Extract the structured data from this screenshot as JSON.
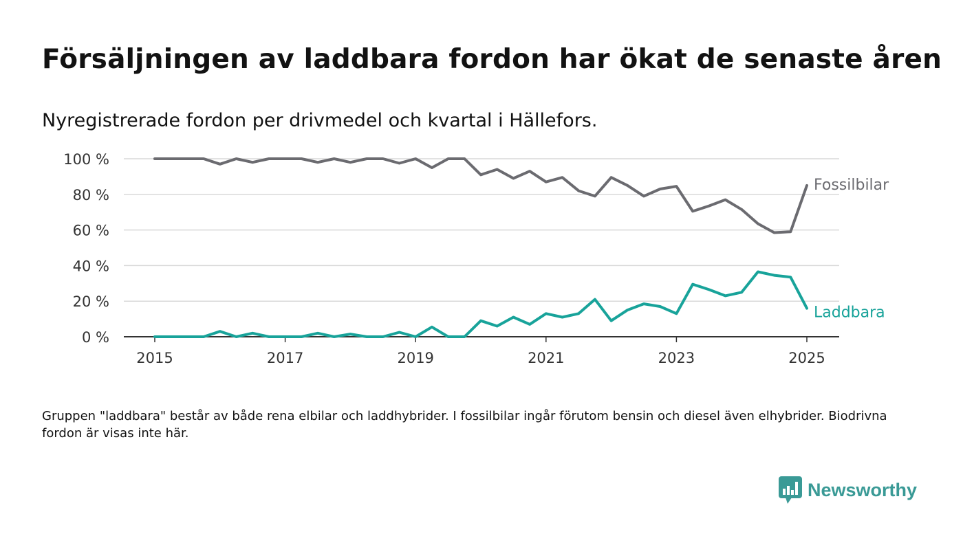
{
  "header": {
    "title": "Försäljningen av laddbara fordon har ökat de senaste åren",
    "subtitle": "Nyregistrerade fordon per drivmedel och kvartal i Hällefors."
  },
  "chart_data": {
    "type": "line",
    "x_start": "2015 Q1",
    "x_ticks": [
      "2015",
      "2017",
      "2019",
      "2021",
      "2023",
      "2025"
    ],
    "y_ticks": [
      "0 %",
      "20 %",
      "40 %",
      "60 %",
      "80 %",
      "100 %"
    ],
    "ylim": [
      0,
      100
    ],
    "grid": true,
    "legend": "direct labels at line ends (right)",
    "series": [
      {
        "name": "Fossilbilar",
        "color": "#6b6b70",
        "values": [
          100,
          100,
          100,
          100,
          97,
          100,
          98,
          100,
          100,
          100,
          98,
          100,
          98,
          100,
          100,
          97.5,
          100,
          95,
          100,
          100,
          91,
          94,
          89,
          93,
          87,
          89.5,
          82,
          79,
          89.5,
          85,
          79,
          83,
          84.5,
          70.5,
          73.5,
          77,
          71.5,
          63.5,
          58.5,
          59,
          85
        ]
      },
      {
        "name": "Laddbara",
        "color": "#18a39a",
        "values": [
          0,
          0,
          0,
          0,
          3,
          0,
          2,
          0,
          0,
          0,
          2,
          0,
          1.5,
          0,
          0,
          2.5,
          0,
          5.5,
          0,
          0,
          9,
          6,
          11,
          7,
          13,
          11,
          13,
          21,
          9,
          15,
          18.5,
          17,
          13,
          29.5,
          26.5,
          23,
          25,
          36.5,
          34.5,
          33.5,
          16
        ]
      }
    ]
  },
  "footnote": "Gruppen \"laddbara\" består av både rena elbilar och laddhybrider. I fossilbilar ingår förutom bensin och diesel även elhybrider. Biodrivna fordon är visas inte här.",
  "brand": {
    "name": "Newsworthy",
    "icon": "bar-chart-speech-bubble-icon",
    "color": "#3a9a96"
  }
}
